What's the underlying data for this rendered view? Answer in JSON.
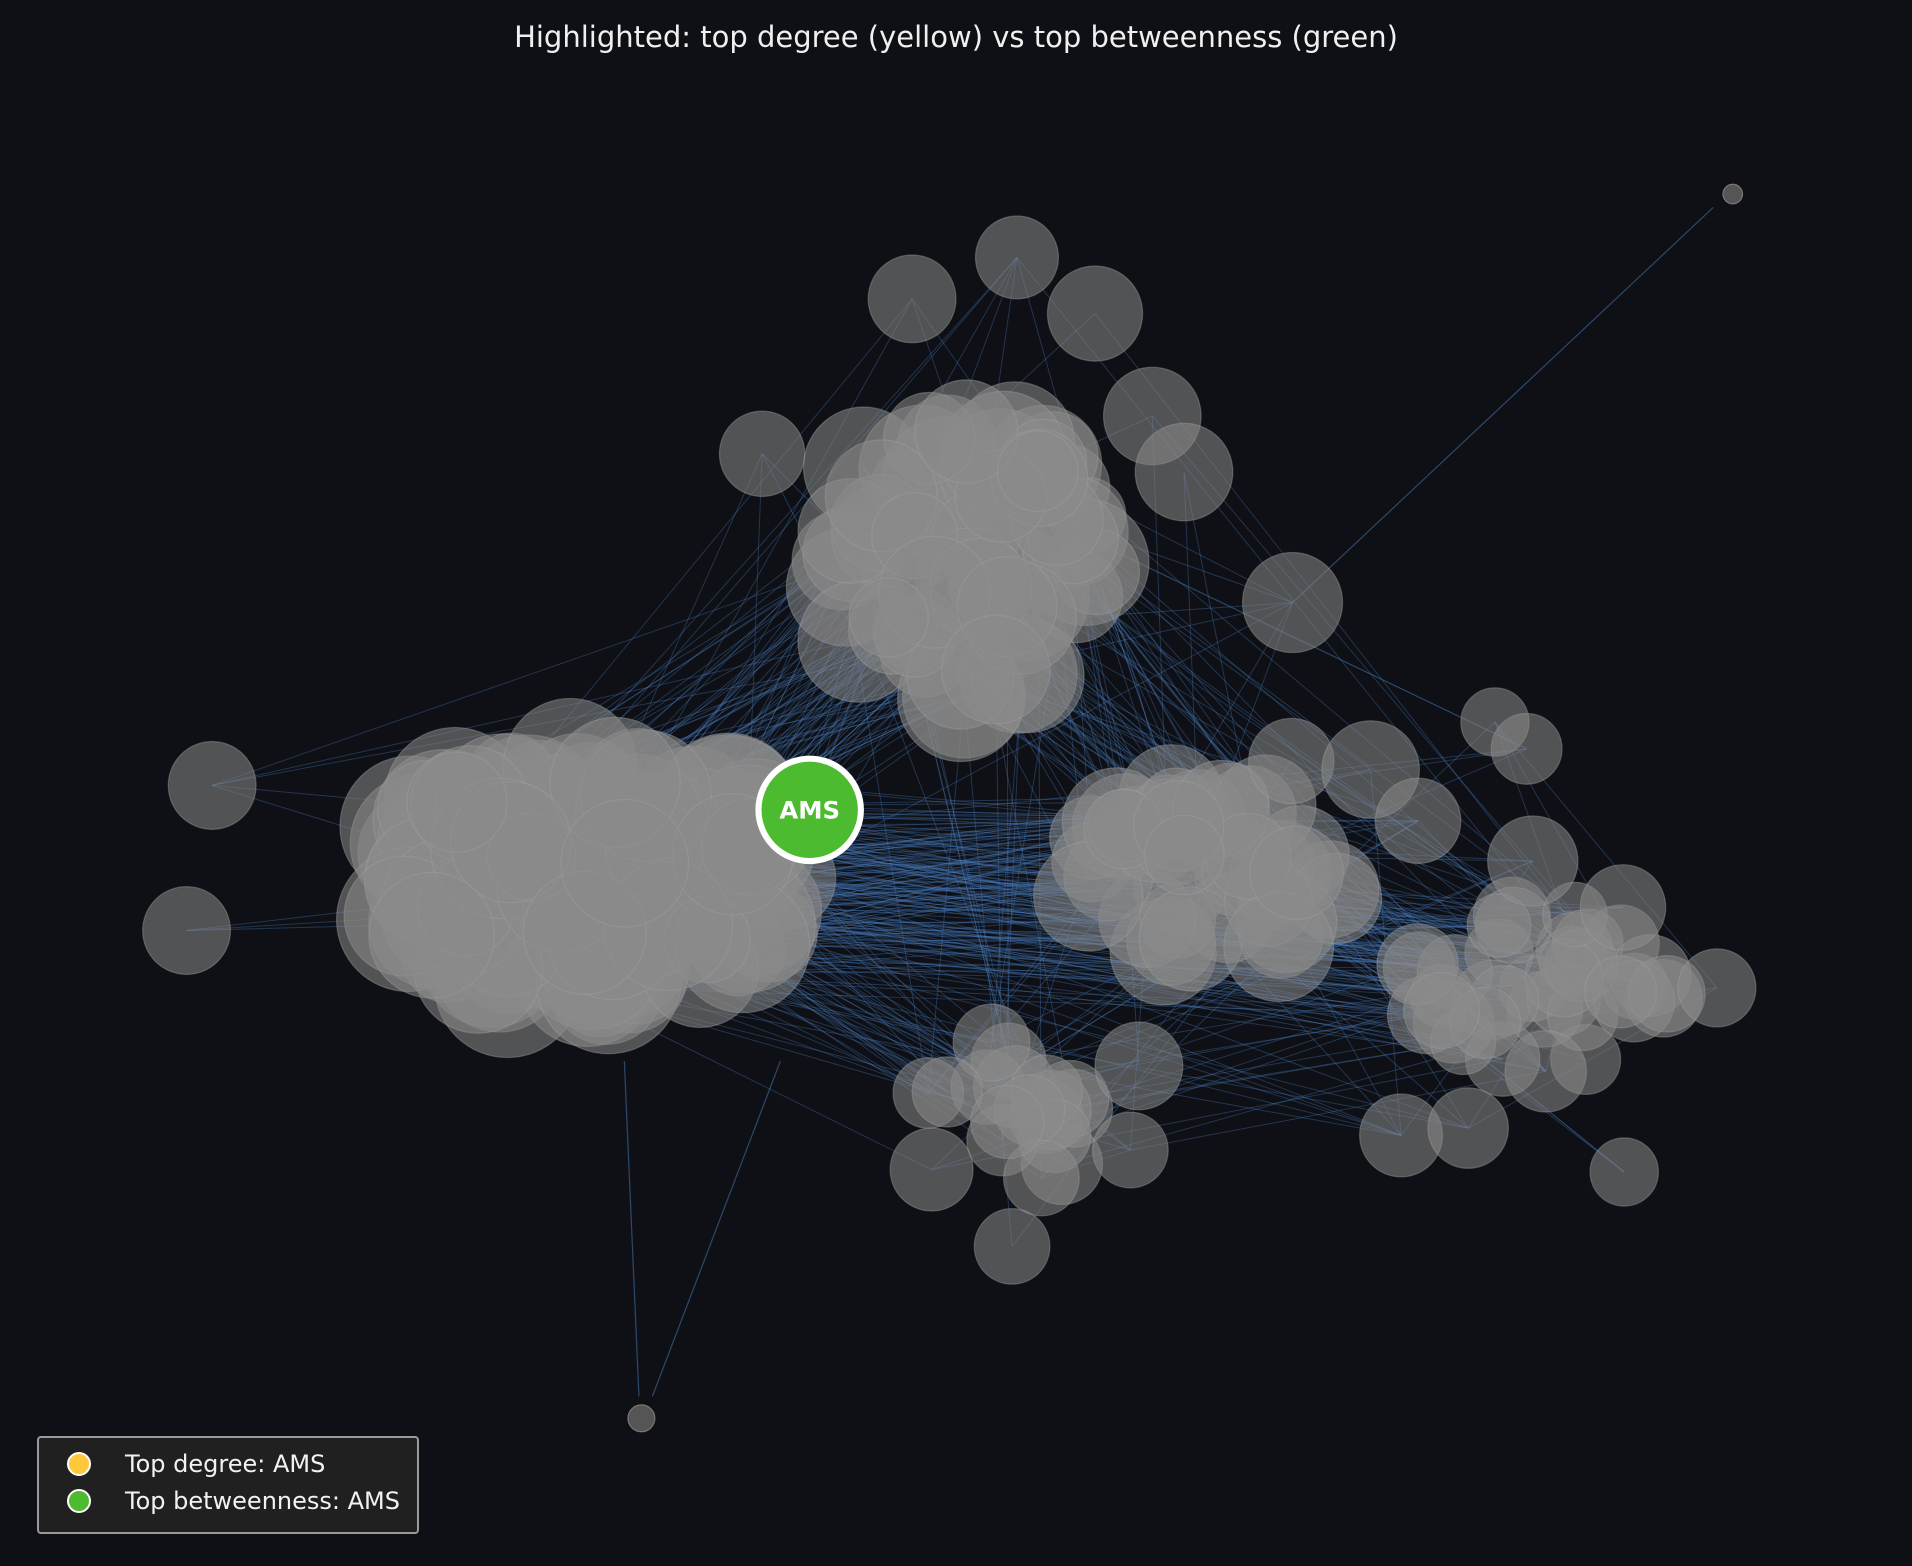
{
  "title": "Highlighted: top degree (yellow) vs top betweenness (green)",
  "highlighted_node": {
    "label": "AMS",
    "color": "#4cbb2f"
  },
  "legend": [
    {
      "label": "Top degree: AMS",
      "color": "#ffc83a"
    },
    {
      "label": "Top betweenness: AMS",
      "color": "#4cbb2f"
    }
  ],
  "colors": {
    "background": "#0e1015",
    "node": "#8a8a8a",
    "edge": "#4a7fc0",
    "isolated_node": "#555555"
  }
}
